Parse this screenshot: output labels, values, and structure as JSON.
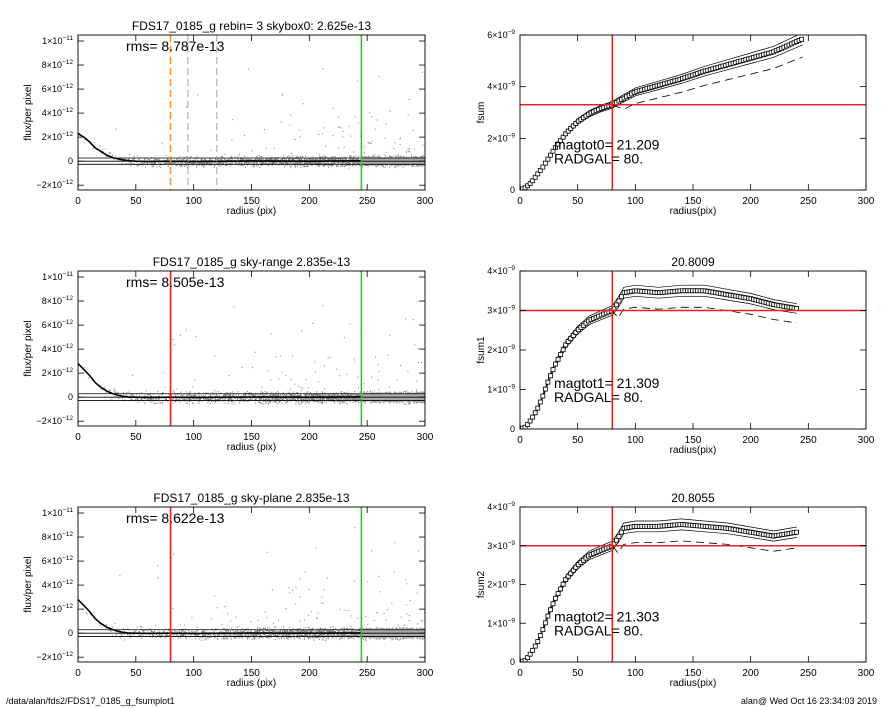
{
  "footer": {
    "left": "/data/alan/fds2/FDS17_0185_g_fsumplot1",
    "right": "alan@  Wed Oct 16 23:34:03 2019"
  },
  "colors": {
    "red": "#e8211f",
    "green": "#22d01f",
    "orange": "#f0932b",
    "gray": "#8c8c8c"
  },
  "chart_data": [
    {
      "type": "scatter",
      "title": "FDS17_0185_g rebin= 3    skybox0:  2.625e-13",
      "annotation": "rms= 8.787e-13",
      "xlabel": "radius (pix)",
      "ylabel": "flux/per pixel",
      "xlim": [
        0,
        300
      ],
      "ylim": [
        -2.4e-12,
        1.05e-11
      ],
      "xticks": [
        "0",
        "50",
        "100",
        "150",
        "200",
        "250",
        "300"
      ],
      "yticks": [
        {
          "v": -2e-12,
          "m": "−2×10",
          "e": "−12"
        },
        {
          "v": 0,
          "m": "0",
          "e": ""
        },
        {
          "v": 2e-12,
          "m": "2×10",
          "e": "−12"
        },
        {
          "v": 4e-12,
          "m": "4×10",
          "e": "−12"
        },
        {
          "v": 6e-12,
          "m": "6×10",
          "e": "−12"
        },
        {
          "v": 8e-12,
          "m": "8×10",
          "e": "−12"
        },
        {
          "v": 1e-11,
          "m": "1×10",
          "e": "−11"
        }
      ],
      "profile": {
        "x": [
          0,
          5,
          10,
          15,
          20,
          25,
          30,
          35,
          40,
          45,
          50,
          60,
          80,
          100,
          150,
          200,
          245
        ],
        "y": [
          2.3e-12,
          2e-12,
          1.6e-12,
          1.1e-12,
          8e-13,
          5e-13,
          3e-13,
          1.8e-13,
          8e-14,
          3e-14,
          0,
          -3e-14,
          0,
          -4e-14,
          2e-14,
          0,
          3e-14
        ]
      },
      "hlines": [
        0,
        2.625e-13,
        -2.625e-13
      ],
      "vlines": [
        {
          "x": 80,
          "color": "orange",
          "dash": true
        },
        {
          "x": 95,
          "color": "gray",
          "dash": true
        },
        {
          "x": 120,
          "color": "gray",
          "dash": true
        },
        {
          "x": 245,
          "color": "green",
          "dash": false
        }
      ]
    },
    {
      "type": "line",
      "title": "",
      "xlabel": "radius(pix)",
      "ylabel": "fsum",
      "xlim": [
        0,
        300
      ],
      "ylim": [
        0,
        6e-09
      ],
      "xticks": [
        "0",
        "50",
        "100",
        "150",
        "200",
        "250",
        "300"
      ],
      "yticks": [
        {
          "v": 0,
          "m": "0",
          "e": ""
        },
        {
          "v": 2e-09,
          "m": "2×10",
          "e": "−9"
        },
        {
          "v": 4e-09,
          "m": "4×10",
          "e": "−9"
        },
        {
          "v": 6e-09,
          "m": "6×10",
          "e": "−9"
        }
      ],
      "series": [
        {
          "x": [
            0,
            5,
            10,
            15,
            20,
            25,
            30,
            40,
            50,
            60,
            70,
            80,
            90,
            100,
            120,
            140,
            160,
            180,
            200,
            220,
            245
          ],
          "y": [
            0,
            1e-10,
            3e-10,
            6e-10,
            9e-10,
            1.25e-09,
            1.6e-09,
            2.2e-09,
            2.65e-09,
            2.95e-09,
            3.15e-09,
            3.3e-09,
            3.55e-09,
            3.8e-09,
            4.05e-09,
            4.3e-09,
            4.6e-09,
            4.85e-09,
            5.1e-09,
            5.35e-09,
            5.85e-09
          ]
        }
      ],
      "hline": 3.3e-09,
      "vline": 80,
      "annotations": [
        "magtot0=  21.209",
        "RADGAL=     80."
      ]
    },
    {
      "type": "scatter",
      "title": "FDS17_0185_g sky-range  2.835e-13",
      "annotation": "rms= 8.505e-13",
      "xlabel": "radius (pix)",
      "ylabel": "flux/per pixel",
      "xlim": [
        0,
        300
      ],
      "ylim": [
        -2.4e-12,
        1.05e-11
      ],
      "xticks": [
        "0",
        "50",
        "100",
        "150",
        "200",
        "250",
        "300"
      ],
      "yticks": [
        {
          "v": -2e-12,
          "m": "−2×10",
          "e": "−12"
        },
        {
          "v": 0,
          "m": "0",
          "e": ""
        },
        {
          "v": 2e-12,
          "m": "2×10",
          "e": "−12"
        },
        {
          "v": 4e-12,
          "m": "4×10",
          "e": "−12"
        },
        {
          "v": 6e-12,
          "m": "6×10",
          "e": "−12"
        },
        {
          "v": 8e-12,
          "m": "8×10",
          "e": "−12"
        },
        {
          "v": 1e-11,
          "m": "1×10",
          "e": "−11"
        }
      ],
      "profile": {
        "x": [
          0,
          5,
          10,
          15,
          20,
          25,
          30,
          35,
          40,
          45,
          50,
          60,
          80,
          100,
          150,
          200,
          245
        ],
        "y": [
          2.8e-12,
          2.3e-12,
          1.8e-12,
          1.2e-12,
          8e-13,
          5e-13,
          3e-13,
          1.5e-13,
          5e-14,
          0,
          0,
          -2e-14,
          0,
          -3e-14,
          1e-14,
          0,
          2e-14
        ]
      },
      "hlines": [
        0,
        2.835e-13,
        -2.835e-13
      ],
      "vlines": [
        {
          "x": 80,
          "color": "red",
          "dash": false
        },
        {
          "x": 245,
          "color": "green",
          "dash": false
        }
      ]
    },
    {
      "type": "line",
      "title": "20.8009",
      "xlabel": "radius(pix)",
      "ylabel": "fsum1",
      "xlim": [
        0,
        300
      ],
      "ylim": [
        0,
        4e-09
      ],
      "xticks": [
        "0",
        "50",
        "100",
        "150",
        "200",
        "250",
        "300"
      ],
      "yticks": [
        {
          "v": 0,
          "m": "0",
          "e": ""
        },
        {
          "v": 1e-09,
          "m": "1×10",
          "e": "−9"
        },
        {
          "v": 2e-09,
          "m": "2×10",
          "e": "−9"
        },
        {
          "v": 3e-09,
          "m": "3×10",
          "e": "−9"
        },
        {
          "v": 4e-09,
          "m": "4×10",
          "e": "−9"
        }
      ],
      "series": [
        {
          "x": [
            0,
            5,
            10,
            15,
            20,
            25,
            30,
            40,
            50,
            60,
            70,
            80,
            85,
            90,
            100,
            120,
            140,
            160,
            180,
            200,
            220,
            240
          ],
          "y": [
            0,
            5e-11,
            2.5e-10,
            5e-10,
            8.5e-10,
            1.25e-09,
            1.6e-09,
            2.15e-09,
            2.5e-09,
            2.75e-09,
            2.88e-09,
            3e-09,
            3.2e-09,
            3.45e-09,
            3.5e-09,
            3.45e-09,
            3.5e-09,
            3.5e-09,
            3.4e-09,
            3.3e-09,
            3.15e-09,
            3.05e-09
          ]
        }
      ],
      "hline": 3e-09,
      "vline": 80,
      "annotations": [
        "magtot1=  21.309",
        "RADGAL=     80."
      ]
    },
    {
      "type": "scatter",
      "title": "FDS17_0185_g sky-plane  2.835e-13",
      "annotation": "rms= 8.622e-13",
      "xlabel": "radius (pix)",
      "ylabel": "flux/per pixel",
      "xlim": [
        0,
        300
      ],
      "ylim": [
        -2.4e-12,
        1.05e-11
      ],
      "xticks": [
        "0",
        "50",
        "100",
        "150",
        "200",
        "250",
        "300"
      ],
      "yticks": [
        {
          "v": -2e-12,
          "m": "−2×10",
          "e": "−12"
        },
        {
          "v": 0,
          "m": "0",
          "e": ""
        },
        {
          "v": 2e-12,
          "m": "2×10",
          "e": "−12"
        },
        {
          "v": 4e-12,
          "m": "4×10",
          "e": "−12"
        },
        {
          "v": 6e-12,
          "m": "6×10",
          "e": "−12"
        },
        {
          "v": 8e-12,
          "m": "8×10",
          "e": "−12"
        },
        {
          "v": 1e-11,
          "m": "1×10",
          "e": "−11"
        }
      ],
      "profile": {
        "x": [
          0,
          5,
          10,
          15,
          20,
          25,
          30,
          35,
          40,
          45,
          50,
          60,
          80,
          100,
          150,
          200,
          245
        ],
        "y": [
          2.8e-12,
          2.3e-12,
          1.8e-12,
          1.2e-12,
          8e-13,
          5e-13,
          3e-13,
          1.5e-13,
          5e-14,
          0,
          0,
          -2e-14,
          0,
          -3e-14,
          1e-14,
          0,
          2e-14
        ]
      },
      "hlines": [
        0,
        2.835e-13,
        -2.835e-13
      ],
      "vlines": [
        {
          "x": 80,
          "color": "red",
          "dash": false
        },
        {
          "x": 245,
          "color": "green",
          "dash": false
        }
      ]
    },
    {
      "type": "line",
      "title": "20.8055",
      "xlabel": "radius(pix)",
      "ylabel": "fsum2",
      "xlim": [
        0,
        300
      ],
      "ylim": [
        0,
        4e-09
      ],
      "xticks": [
        "0",
        "50",
        "100",
        "150",
        "200",
        "250",
        "300"
      ],
      "yticks": [
        {
          "v": 0,
          "m": "0",
          "e": ""
        },
        {
          "v": 1e-09,
          "m": "1×10",
          "e": "−9"
        },
        {
          "v": 2e-09,
          "m": "2×10",
          "e": "−9"
        },
        {
          "v": 3e-09,
          "m": "3×10",
          "e": "−9"
        },
        {
          "v": 4e-09,
          "m": "4×10",
          "e": "−9"
        }
      ],
      "series": [
        {
          "x": [
            0,
            5,
            10,
            15,
            20,
            25,
            30,
            40,
            50,
            60,
            70,
            80,
            85,
            90,
            100,
            120,
            140,
            160,
            180,
            200,
            220,
            240
          ],
          "y": [
            0,
            5e-11,
            2.5e-10,
            5e-10,
            8.5e-10,
            1.25e-09,
            1.6e-09,
            2.15e-09,
            2.5e-09,
            2.75e-09,
            2.88e-09,
            3e-09,
            3.2e-09,
            3.45e-09,
            3.5e-09,
            3.5e-09,
            3.55e-09,
            3.5e-09,
            3.45e-09,
            3.35e-09,
            3.25e-09,
            3.35e-09
          ]
        }
      ],
      "hline": 3e-09,
      "vline": 80,
      "annotations": [
        "magtot2=  21.303",
        "RADGAL=     80."
      ]
    }
  ]
}
